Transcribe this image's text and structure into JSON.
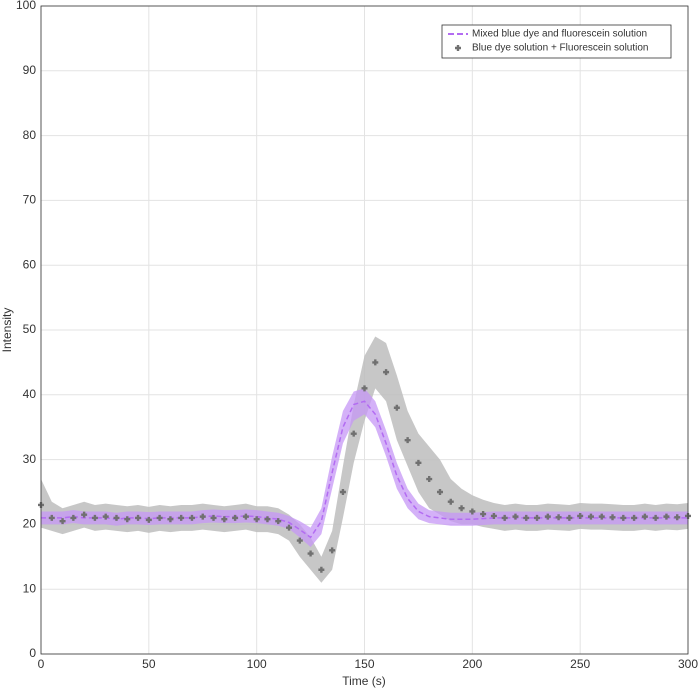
{
  "chart_data": {
    "type": "line",
    "xlabel": "Time (s)",
    "ylabel": "Intensity",
    "xlim": [
      0,
      300
    ],
    "ylim": [
      0,
      100
    ],
    "xticks": [
      0,
      50,
      100,
      150,
      200,
      250,
      300
    ],
    "yticks": [
      0,
      10,
      20,
      30,
      40,
      50,
      60,
      70,
      80,
      90,
      100
    ],
    "grid": true,
    "legend": "upper right",
    "x": [
      0,
      5,
      10,
      15,
      20,
      25,
      30,
      35,
      40,
      45,
      50,
      55,
      60,
      65,
      70,
      75,
      80,
      85,
      90,
      95,
      100,
      105,
      110,
      115,
      120,
      125,
      130,
      135,
      140,
      145,
      150,
      155,
      160,
      165,
      170,
      175,
      180,
      185,
      190,
      195,
      200,
      205,
      210,
      215,
      220,
      225,
      230,
      235,
      240,
      245,
      250,
      255,
      260,
      265,
      270,
      275,
      280,
      285,
      290,
      295,
      300
    ],
    "series": [
      {
        "name": "Mixed blue dye and fluorescein solution",
        "color": "#b36cf2",
        "band_color": "#c597f5",
        "style": "dashed",
        "values": [
          21,
          21,
          21,
          21.2,
          21,
          21,
          21,
          20.8,
          21,
          21,
          20.9,
          21,
          21,
          21,
          21,
          21.2,
          21.3,
          21.2,
          21.2,
          21.3,
          21.2,
          21,
          20.8,
          20.3,
          19.2,
          18,
          20.5,
          28,
          35,
          38.5,
          39,
          37,
          32.5,
          27.5,
          24,
          22,
          21.2,
          21,
          20.8,
          20.8,
          20.8,
          20.9,
          21,
          21,
          21,
          21,
          21,
          21,
          21,
          21,
          21,
          21,
          21,
          21,
          21,
          21,
          21,
          21,
          21,
          21,
          21
        ],
        "lower": [
          20,
          20,
          20,
          20.2,
          20,
          20,
          20,
          19.8,
          20,
          20,
          19.9,
          20,
          20,
          20,
          20,
          20.2,
          20.3,
          20.2,
          20.2,
          20.3,
          20.2,
          20,
          19.8,
          19.3,
          18,
          16.5,
          18.5,
          25.5,
          32.5,
          36,
          37,
          35,
          30.5,
          25.5,
          22.5,
          20.8,
          20.2,
          20,
          19.8,
          19.8,
          19.8,
          19.9,
          20,
          20,
          20,
          20,
          20,
          20,
          20,
          20,
          20,
          20,
          20,
          20,
          20,
          20,
          20,
          20,
          20,
          20,
          20
        ],
        "upper": [
          22,
          22,
          22,
          22.2,
          22,
          22,
          22,
          21.8,
          22,
          22,
          21.9,
          22,
          22,
          22,
          22,
          22.2,
          22.3,
          22.2,
          22.2,
          22.3,
          22.2,
          22,
          21.8,
          21.3,
          20.5,
          19.5,
          22.5,
          30.5,
          37.5,
          40.5,
          41,
          39,
          34.5,
          29.5,
          25.5,
          23.2,
          22.2,
          22,
          21.8,
          21.8,
          21.8,
          21.9,
          22,
          22,
          22,
          22,
          22,
          22,
          22,
          22,
          22,
          22,
          22,
          22,
          22,
          22,
          22,
          22,
          22,
          22,
          22
        ]
      },
      {
        "name": "Blue dye solution + Fluorescein solution",
        "color": "#707070",
        "band_color": "#bdbdbd",
        "style": "plus",
        "values": [
          23,
          21,
          20.5,
          21,
          21.5,
          21,
          21.2,
          21,
          20.8,
          21,
          20.7,
          21,
          20.8,
          21,
          21,
          21.2,
          21,
          20.8,
          21,
          21.2,
          20.8,
          20.8,
          20.5,
          19.5,
          17.5,
          15.5,
          13,
          16,
          25,
          34,
          41,
          45,
          43.5,
          38,
          33,
          29.5,
          27,
          25,
          23.5,
          22.5,
          22,
          21.6,
          21.3,
          21,
          21.2,
          21,
          21,
          21.2,
          21.1,
          21,
          21.3,
          21.2,
          21.2,
          21.1,
          21,
          21,
          21.2,
          21,
          21.2,
          21.1,
          21.3
        ],
        "lower": [
          19.5,
          19,
          18.5,
          19,
          19.5,
          19,
          19.2,
          19,
          18.8,
          19,
          18.7,
          19,
          18.8,
          19,
          19,
          19.2,
          19,
          18.8,
          19,
          19.2,
          18.8,
          18.8,
          18.5,
          17.5,
          15,
          13,
          11,
          13,
          21,
          29.5,
          36,
          41,
          39,
          33,
          29,
          25,
          22.5,
          21.5,
          20.5,
          20,
          20,
          19.6,
          19.3,
          19,
          19.2,
          19,
          19,
          19.2,
          19.1,
          19,
          19.3,
          19.2,
          19.2,
          19.1,
          19,
          19,
          19.2,
          19,
          19.2,
          19.1,
          19.3
        ],
        "upper": [
          27,
          23.5,
          22.5,
          23,
          23.5,
          23,
          23.2,
          23,
          22.8,
          23,
          22.7,
          23,
          22.8,
          23,
          23,
          23.2,
          23,
          22.8,
          23,
          23.2,
          22.8,
          22.8,
          22.5,
          21.5,
          20,
          18,
          15,
          19,
          29,
          38.5,
          46,
          49,
          48,
          43,
          37.5,
          34,
          32,
          30,
          27,
          25.5,
          24.5,
          23.8,
          23.3,
          23,
          23.2,
          23,
          23,
          23.2,
          23.1,
          23,
          23.3,
          23.2,
          23.2,
          23.1,
          23,
          23,
          23.2,
          23,
          23.2,
          23.1,
          23.3
        ]
      }
    ]
  }
}
